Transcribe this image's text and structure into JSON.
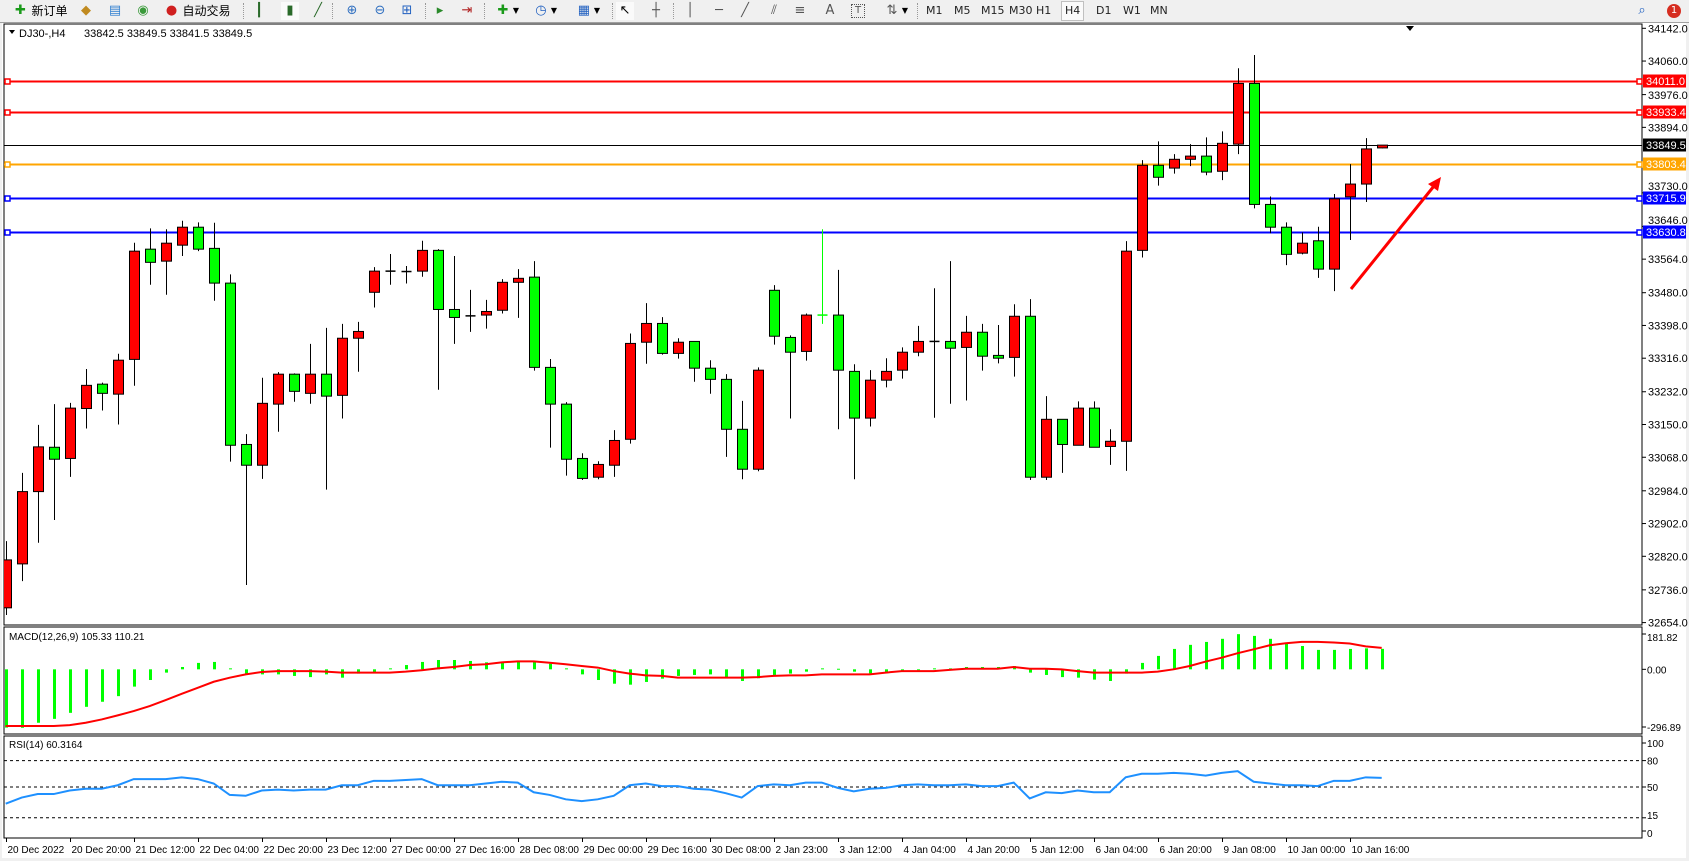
{
  "toolbar": {
    "new_order": "新订单",
    "auto_trading": "自动交易",
    "icons": [
      "new-order-icon",
      "market-watch-icon",
      "navigator-icon",
      "signals-icon",
      "auto-trading-icon",
      "bar-chart-icon",
      "candlestick-chart-icon",
      "line-chart-icon",
      "zoom-in-icon",
      "zoom-out-icon",
      "tile-windows-icon",
      "auto-scroll-icon",
      "chart-shift-icon",
      "indicators-icon",
      "periods-icon",
      "templates-icon",
      "cursor-icon",
      "crosshair-icon",
      "vertical-line-icon",
      "horizontal-line-icon",
      "trendline-icon",
      "equidistant-channel-icon",
      "fibonacci-icon",
      "text-icon",
      "text-label-icon",
      "arrows-icon",
      "search-icon",
      "notifications-icon"
    ],
    "periods": [
      "M1",
      "M5",
      "M15",
      "M30",
      "H1",
      "H4",
      "D1",
      "W1",
      "MN"
    ],
    "active_period": "H4",
    "notification_count": "1"
  },
  "header": {
    "symbol": "DJ30-,H4",
    "ohlc": "33842.5 33849.5 33841.5 33849.5"
  },
  "chart_data": {
    "type": "candlestick",
    "symbol": "DJ30-",
    "timeframe": "H4",
    "candle_fields": [
      "open",
      "high",
      "low",
      "close"
    ],
    "candles": [
      [
        32691,
        32858,
        32673,
        32811
      ],
      [
        32801,
        33029,
        32758,
        32982
      ],
      [
        32982,
        33149,
        32854,
        33094
      ],
      [
        33093,
        33201,
        32911,
        33063
      ],
      [
        33065,
        33204,
        33019,
        33191
      ],
      [
        33190,
        33289,
        33140,
        33248
      ],
      [
        33251,
        33255,
        33185,
        33228
      ],
      [
        33226,
        33327,
        33150,
        33311
      ],
      [
        33313,
        33605,
        33247,
        33584
      ],
      [
        33589,
        33641,
        33500,
        33556
      ],
      [
        33559,
        33639,
        33475,
        33604
      ],
      [
        33599,
        33660,
        33572,
        33644
      ],
      [
        33644,
        33656,
        33584,
        33589
      ],
      [
        33591,
        33655,
        33460,
        33504
      ],
      [
        33504,
        33526,
        33057,
        33098
      ],
      [
        33100,
        33126,
        32748,
        33048
      ],
      [
        33048,
        33267,
        33014,
        33203
      ],
      [
        33201,
        33281,
        33132,
        33276
      ],
      [
        33276,
        33278,
        33207,
        33233
      ],
      [
        33228,
        33352,
        33202,
        33276
      ],
      [
        33276,
        33392,
        32987,
        33221
      ],
      [
        33223,
        33402,
        33165,
        33366
      ],
      [
        33366,
        33407,
        33282,
        33383
      ],
      [
        33481,
        33544,
        33443,
        33534
      ],
      [
        33533,
        33577,
        33500,
        33534
      ],
      [
        33533,
        33547,
        33503,
        33533
      ],
      [
        33534,
        33610,
        33520,
        33586
      ],
      [
        33586,
        33589,
        33237,
        33438
      ],
      [
        33438,
        33572,
        33352,
        33418
      ],
      [
        33422,
        33487,
        33382,
        33421
      ],
      [
        33424,
        33462,
        33390,
        33433
      ],
      [
        33436,
        33514,
        33428,
        33506
      ],
      [
        33506,
        33539,
        33417,
        33516
      ],
      [
        33519,
        33559,
        33285,
        33293
      ],
      [
        33293,
        33314,
        33092,
        33201
      ],
      [
        33201,
        33206,
        33022,
        33063
      ],
      [
        33065,
        33078,
        33011,
        33015
      ],
      [
        33018,
        33058,
        33013,
        33050
      ],
      [
        33048,
        33136,
        33019,
        33110
      ],
      [
        33113,
        33378,
        33102,
        33353
      ],
      [
        33356,
        33454,
        33302,
        33403
      ],
      [
        33403,
        33419,
        33325,
        33328
      ],
      [
        33328,
        33366,
        33315,
        33356
      ],
      [
        33358,
        33358,
        33257,
        33291
      ],
      [
        33291,
        33311,
        33227,
        33263
      ],
      [
        33263,
        33276,
        33069,
        33138
      ],
      [
        33138,
        33209,
        33013,
        33038
      ],
      [
        33038,
        33293,
        33033,
        33286
      ],
      [
        33486,
        33499,
        33350,
        33371
      ],
      [
        33368,
        33373,
        33165,
        33331
      ],
      [
        33333,
        33428,
        33310,
        33424
      ],
      [
        33424,
        33639,
        33402,
        33424
      ],
      [
        33424,
        33537,
        33138,
        33286
      ],
      [
        33283,
        33301,
        33013,
        33166
      ],
      [
        33166,
        33286,
        33145,
        33261
      ],
      [
        33261,
        33316,
        33243,
        33283
      ],
      [
        33286,
        33343,
        33265,
        33331
      ],
      [
        33331,
        33397,
        33321,
        33358
      ],
      [
        33358,
        33491,
        33167,
        33358
      ],
      [
        33358,
        33559,
        33202,
        33341
      ],
      [
        33343,
        33422,
        33210,
        33381
      ],
      [
        33381,
        33402,
        33285,
        33321
      ],
      [
        33323,
        33399,
        33303,
        33316
      ],
      [
        33318,
        33451,
        33270,
        33421
      ],
      [
        33421,
        33464,
        33011,
        33018
      ],
      [
        33018,
        33221,
        33011,
        33163
      ],
      [
        33163,
        33163,
        33029,
        33100
      ],
      [
        33098,
        33208,
        33098,
        33191
      ],
      [
        33191,
        33208,
        33093,
        33093
      ],
      [
        33095,
        33138,
        33049,
        33108
      ],
      [
        33108,
        33609,
        33034,
        33584
      ],
      [
        33586,
        33812,
        33568,
        33799
      ],
      [
        33799,
        33859,
        33748,
        33769
      ],
      [
        33792,
        33827,
        33778,
        33814
      ],
      [
        33814,
        33852,
        33797,
        33822
      ],
      [
        33822,
        33869,
        33774,
        33782
      ],
      [
        33784,
        33884,
        33762,
        33854
      ],
      [
        33852,
        34042,
        33827,
        34004
      ],
      [
        34004,
        34075,
        33691,
        33701
      ],
      [
        33701,
        33721,
        33629,
        33644
      ],
      [
        33644,
        33656,
        33549,
        33576
      ],
      [
        33579,
        33631,
        33576,
        33604
      ],
      [
        33610,
        33645,
        33517,
        33539
      ],
      [
        33539,
        33727,
        33484,
        33715
      ],
      [
        33720,
        33802,
        33612,
        33752
      ],
      [
        33752,
        33867,
        33707,
        33840
      ],
      [
        33842.5,
        33849.5,
        33841.5,
        33849.5
      ]
    ],
    "colors": {
      "bull": "#ff0000",
      "bear": "#00ff00",
      "outline": "#000000",
      "background": "#ffffff"
    },
    "price_axis": {
      "range": [
        32654.0,
        34142.0
      ],
      "ticks": [
        "34142.0",
        "34060.0",
        "33976.0",
        "33894.0",
        "33730.0",
        "33646.0",
        "33564.0",
        "33480.0",
        "33398.0",
        "33316.0",
        "33232.0",
        "33150.0",
        "33068.0",
        "32984.0",
        "32902.0",
        "32820.0",
        "32736.0",
        "32654.0"
      ]
    },
    "levels": [
      {
        "value": 34011.0,
        "label": "34011.0",
        "color": "#ff0000"
      },
      {
        "value": 33933.4,
        "label": "33933.4",
        "color": "#ff0000"
      },
      {
        "value": 33849.5,
        "label": "33849.5",
        "color": "#000000",
        "kind": "bid"
      },
      {
        "value": 33803.4,
        "label": "33803.4",
        "color": "#ffa500"
      },
      {
        "value": 33715.9,
        "label": "33715.9",
        "color": "#0000ff"
      },
      {
        "value": 33630.8,
        "label": "33630.8",
        "color": "#0000ff"
      }
    ],
    "annotation_arrow_color": "#ff0000",
    "time_labels": [
      "20 Dec 2022",
      "20 Dec 20:00",
      "21 Dec 12:00",
      "22 Dec 04:00",
      "22 Dec 20:00",
      "23 Dec 12:00",
      "27 Dec 00:00",
      "27 Dec 16:00",
      "28 Dec 08:00",
      "29 Dec 00:00",
      "29 Dec 16:00",
      "30 Dec 08:00",
      "2 Jan 23:00",
      "3 Jan 12:00",
      "4 Jan 04:00",
      "4 Jan 20:00",
      "5 Jan 12:00",
      "6 Jan 04:00",
      "6 Jan 20:00",
      "9 Jan 08:00",
      "10 Jan 00:00",
      "10 Jan 16:00"
    ],
    "macd": {
      "label": "MACD(12,26,9) 105.33 110.21",
      "range": [
        -296.89,
        181.82
      ],
      "ticks": [
        "181.82",
        "0.00",
        "-296.89"
      ],
      "histogram_color": "#00ff00",
      "signal_color": "#ff0000",
      "histogram": [
        -300,
        -301,
        -275,
        -255,
        -224,
        -193,
        -167,
        -138,
        -89,
        -55,
        -17,
        12,
        33,
        38,
        5,
        -26,
        -26,
        -26,
        -34,
        -40,
        -26,
        -43,
        -22,
        -21,
        5,
        22,
        38,
        48,
        48,
        43,
        36,
        33,
        40,
        43,
        29,
        5,
        -26,
        -55,
        -74,
        -79,
        -65,
        -48,
        -34,
        -29,
        -26,
        -40,
        -60,
        -46,
        -29,
        -22,
        -12,
        5,
        3,
        -12,
        -21,
        -17,
        -9,
        -5,
        5,
        5,
        12,
        12,
        12,
        17,
        -17,
        -29,
        -40,
        -43,
        -53,
        -60,
        -22,
        33,
        69,
        105,
        126,
        141,
        157,
        181,
        172,
        157,
        131,
        120,
        100,
        100,
        105,
        108,
        105.33
      ],
      "signal": [
        -292,
        -292,
        -292,
        -292,
        -287,
        -275,
        -258,
        -237,
        -215,
        -189,
        -158,
        -126,
        -95,
        -64,
        -43,
        -26,
        -14,
        -9,
        -9,
        -9,
        -12,
        -17,
        -17,
        -17,
        -17,
        -12,
        -5,
        5,
        12,
        22,
        26,
        36,
        41,
        41,
        34,
        26,
        17,
        9,
        -9,
        -22,
        -31,
        -34,
        -43,
        -43,
        -43,
        -43,
        -43,
        -40,
        -34,
        -31,
        -31,
        -26,
        -26,
        -26,
        -26,
        -17,
        -9,
        -9,
        -9,
        -3,
        3,
        3,
        3,
        12,
        3,
        3,
        0,
        -9,
        -17,
        -17,
        -17,
        -17,
        -12,
        0,
        17,
        40,
        60,
        83,
        103,
        124,
        134,
        141,
        141,
        138,
        133,
        118,
        110.21
      ]
    },
    "rsi": {
      "label": "RSI(14) 60.3164",
      "range": [
        0,
        100
      ],
      "ticks": [
        "100",
        "80",
        "50",
        "15",
        "0"
      ],
      "levels": [
        80,
        50,
        15
      ],
      "color": "#1e90ff",
      "values": [
        31,
        38,
        42,
        42,
        46,
        48,
        48,
        52,
        59,
        59,
        59,
        61,
        59,
        54,
        41,
        40,
        46,
        47,
        46,
        47,
        47,
        52,
        52,
        57,
        57,
        58,
        59,
        52,
        52,
        52,
        54,
        56,
        55,
        44,
        41,
        36,
        34,
        36,
        40,
        52,
        54,
        51,
        51,
        48,
        47,
        43,
        38,
        51,
        53,
        52,
        55,
        55,
        49,
        45,
        48,
        49,
        52,
        53,
        52,
        52,
        53,
        51,
        51,
        55,
        37,
        44,
        43,
        46,
        44,
        44,
        61,
        65,
        65,
        66,
        65,
        63,
        66,
        68,
        56,
        54,
        52,
        52,
        51,
        57,
        57,
        61,
        60.3164
      ]
    }
  }
}
